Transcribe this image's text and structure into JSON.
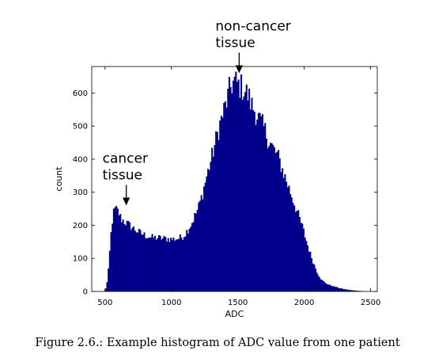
{
  "caption": "Figure 2.6.: Example histogram of ADC value from one patient",
  "chart_data": {
    "type": "bar",
    "title": "",
    "xlabel": "ADC",
    "ylabel": "count",
    "xlim": [
      400,
      2550
    ],
    "ylim": [
      0,
      680
    ],
    "xticks": [
      500,
      1000,
      1500,
      2000,
      2500
    ],
    "yticks": [
      0,
      100,
      200,
      300,
      400,
      500,
      600
    ],
    "bar_color": "#00008b",
    "grid": false,
    "legend": "none",
    "bin_width": 10,
    "profile": [
      [
        490,
        0
      ],
      [
        500,
        3
      ],
      [
        510,
        15
      ],
      [
        520,
        40
      ],
      [
        530,
        90
      ],
      [
        540,
        150
      ],
      [
        550,
        200
      ],
      [
        560,
        230
      ],
      [
        570,
        245
      ],
      [
        580,
        250
      ],
      [
        600,
        240
      ],
      [
        620,
        220
      ],
      [
        650,
        210
      ],
      [
        700,
        195
      ],
      [
        750,
        180
      ],
      [
        800,
        170
      ],
      [
        850,
        163
      ],
      [
        900,
        162
      ],
      [
        950,
        160
      ],
      [
        1000,
        158
      ],
      [
        1050,
        160
      ],
      [
        1080,
        165
      ],
      [
        1100,
        172
      ],
      [
        1120,
        185
      ],
      [
        1150,
        205
      ],
      [
        1180,
        232
      ],
      [
        1200,
        250
      ],
      [
        1230,
        290
      ],
      [
        1260,
        340
      ],
      [
        1300,
        400
      ],
      [
        1330,
        450
      ],
      [
        1360,
        500
      ],
      [
        1390,
        540
      ],
      [
        1420,
        580
      ],
      [
        1440,
        615
      ],
      [
        1460,
        630
      ],
      [
        1480,
        635
      ],
      [
        1500,
        625
      ],
      [
        1520,
        620
      ],
      [
        1550,
        610
      ],
      [
        1580,
        590
      ],
      [
        1600,
        565
      ],
      [
        1630,
        545
      ],
      [
        1660,
        520
      ],
      [
        1700,
        490
      ],
      [
        1730,
        460
      ],
      [
        1760,
        435
      ],
      [
        1800,
        410
      ],
      [
        1830,
        375
      ],
      [
        1860,
        340
      ],
      [
        1900,
        295
      ],
      [
        1930,
        260
      ],
      [
        1960,
        225
      ],
      [
        1990,
        190
      ],
      [
        2010,
        160
      ],
      [
        2040,
        120
      ],
      [
        2070,
        85
      ],
      [
        2100,
        55
      ],
      [
        2130,
        35
      ],
      [
        2160,
        25
      ],
      [
        2200,
        18
      ],
      [
        2250,
        12
      ],
      [
        2300,
        7
      ],
      [
        2350,
        4
      ],
      [
        2400,
        2
      ],
      [
        2440,
        1
      ],
      [
        2460,
        0
      ]
    ],
    "annotations": [
      {
        "lines": [
          "cancer",
          "tissue"
        ],
        "x": 660,
        "y": 255
      },
      {
        "lines": [
          "non-cancer",
          "tissue"
        ],
        "x": 1510,
        "y": 655
      }
    ]
  }
}
